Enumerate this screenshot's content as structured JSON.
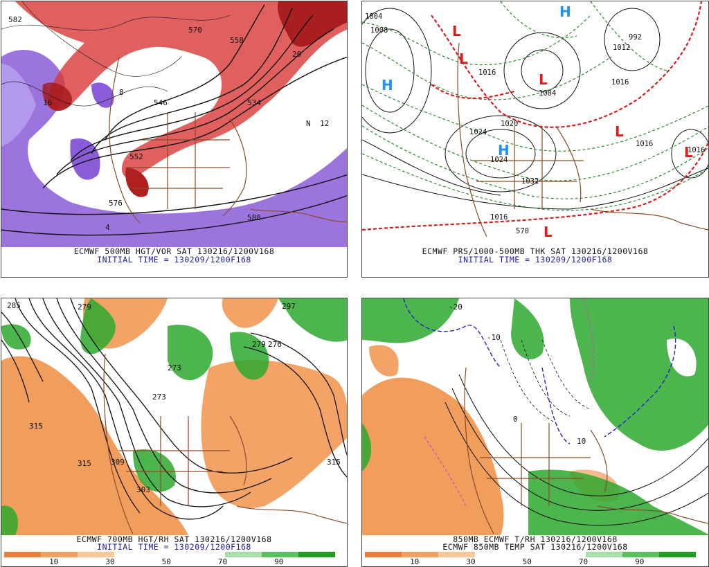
{
  "panels": [
    {
      "line1": "ECMWF 500MB HGT/VOR SAT 130216/1200V168",
      "line2": "INITIAL TIME = 130209/1200F168"
    },
    {
      "line1": "ECMWF PRS/1000-500MB THK SAT 130216/1200V168",
      "line2": "INITIAL TIME = 130209/1200F168"
    },
    {
      "line1": "ECMWF 700MB HGT/RH SAT 130216/1200V168",
      "line2": "INITIAL TIME = 130209/1200F168"
    },
    {
      "line1": "850MB ECMWF T/RH 130216/1200V168",
      "line2": "ECMWF 850MB TEMP SAT 130216/1200V168"
    }
  ],
  "colorbar": {
    "ticks": [
      "10",
      "30",
      "50",
      "70",
      "90"
    ],
    "colors": [
      "#e8823a",
      "#f0a060",
      "#f7c898",
      "#ffffff",
      "#ffffff",
      "#ffffff",
      "#a8dca8",
      "#5cc05c",
      "#1e9a1e"
    ]
  },
  "map_labels": {
    "p1": [
      "552",
      "576",
      "4",
      "8",
      "12",
      "16",
      "20",
      "N",
      "588",
      "582",
      "570",
      "534",
      "546",
      "558"
    ],
    "p2": [
      "L",
      "L",
      "L",
      "L",
      "L",
      "L",
      "H",
      "H",
      "H",
      "1004",
      "1008",
      "1016",
      "1024",
      "1020",
      "1016",
      "1004",
      "1012",
      "1016",
      "1024",
      "1032",
      "992",
      "1016",
      "570",
      "1016"
    ],
    "p3": [
      "315",
      "315",
      "309",
      "303",
      "285",
      "279",
      "273",
      "273",
      "315",
      "279",
      "297",
      "276"
    ],
    "p4": [
      "-20",
      "-10",
      "0",
      "10"
    ]
  },
  "colors": {
    "red_fill": "#d83838",
    "purple_fill": "#8a5cd8",
    "green_fill": "#2ea82e",
    "orange_fill": "#ef8c3e",
    "map_lines": "#8b4a2a",
    "h_blue": "#1e90ff",
    "l_red": "#d81c1c"
  }
}
